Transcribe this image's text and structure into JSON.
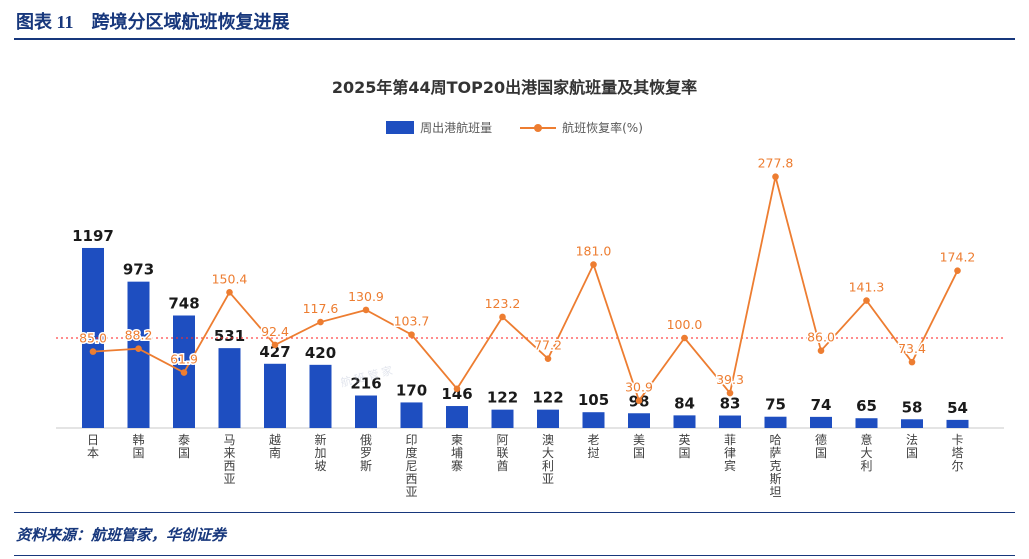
{
  "page": {
    "figure_label": "图表 11",
    "figure_title": "跨境分区域航班恢复进展",
    "source_text": "资料来源：航班管家，华创证券",
    "watermark": "航班管家"
  },
  "chart_data": {
    "type": "bar",
    "subtype": "bar-line-combo",
    "title": "2025年第44周TOP20出港国家航班量及其恢复率",
    "legend": [
      "周出港航班量",
      "航班恢复率(%)"
    ],
    "legend_position": "top-center",
    "categories": [
      "日本",
      "韩国",
      "泰国",
      "马来西亚",
      "越南",
      "新加坡",
      "俄罗斯",
      "印度尼西亚",
      "柬埔寨",
      "阿联酋",
      "澳大利亚",
      "老挝",
      "美国",
      "英国",
      "菲律宾",
      "哈萨克斯坦",
      "德国",
      "意大利",
      "法国",
      "卡塔尔"
    ],
    "series": [
      {
        "name": "周出港航班量",
        "type": "bar",
        "values": [
          1197,
          973,
          748,
          531,
          427,
          420,
          216,
          170,
          146,
          122,
          122,
          105,
          98,
          84,
          83,
          75,
          74,
          65,
          58,
          54
        ]
      },
      {
        "name": "航班恢复率(%)",
        "type": "line",
        "values": [
          85.0,
          88.2,
          61.9,
          150.4,
          92.4,
          117.6,
          130.9,
          103.7,
          44.0,
          123.2,
          77.2,
          181.0,
          30.9,
          100.0,
          39.3,
          277.8,
          86.0,
          141.3,
          73.4,
          174.2
        ],
        "labels": [
          "85.0",
          "88.2",
          "61.9",
          "150.4",
          "92.4",
          "117.6",
          "130.9",
          "103.7",
          "",
          "123.2",
          "77.2",
          "181.0",
          "30.9",
          "100.0",
          "39.3",
          "277.8",
          "86.0",
          "141.3",
          "73.4",
          "174.2"
        ],
        "estimated_indices": [
          8
        ]
      }
    ],
    "reference_line": {
      "value": 100,
      "style": "dotted",
      "color": "#ff2a2a"
    },
    "axes": {
      "y_left_ticks_visible": false,
      "y_right_ticks_visible": false,
      "grid": false,
      "x_labels_orientation": "vertical"
    },
    "colors": {
      "bar": "#1e4ec0",
      "line": "#ed7d31",
      "reference": "#ff2a2a"
    }
  }
}
